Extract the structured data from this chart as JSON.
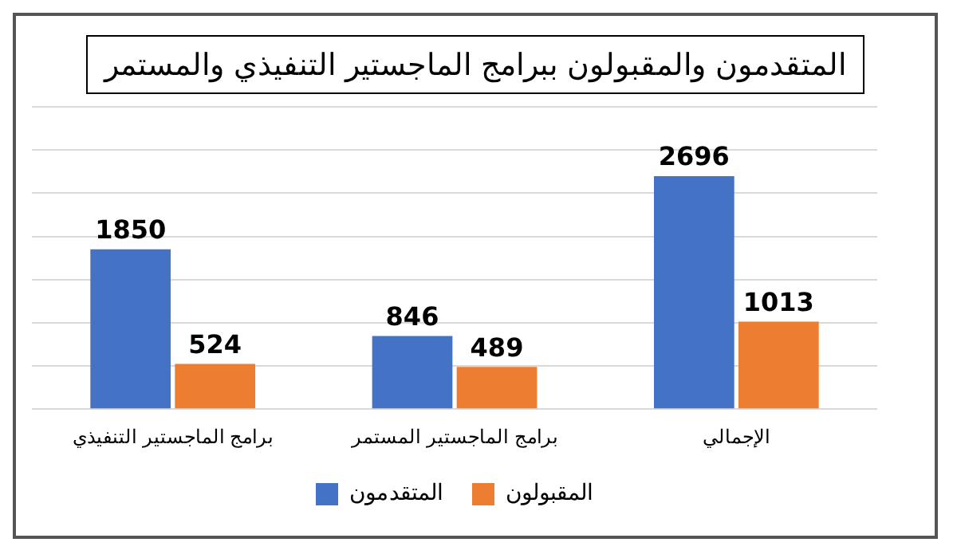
{
  "chart_data": {
    "type": "bar",
    "title": "المتقدمون والمقبولون ببرامج الماجستير التنفيذي والمستمر",
    "categories": [
      "برامج الماجستير التنفيذي",
      "برامج الماجستير المستمر",
      "الإجمالي"
    ],
    "series": [
      {
        "name": "المتقدمون",
        "color": "#4472c4",
        "values": [
          1850,
          846,
          2696
        ]
      },
      {
        "name": "المقبولون",
        "color": "#ed7d31",
        "values": [
          524,
          489,
          1013
        ]
      }
    ],
    "ylim": [
      0,
      3500
    ],
    "yticks": [
      {
        "value": 0,
        "label": null
      },
      {
        "value": 500,
        "label": null
      },
      {
        "value": 1000,
        "label": null
      },
      {
        "value": 1500,
        "label": null
      },
      {
        "value": 2000,
        "label": null
      },
      {
        "value": 2500,
        "label": null
      },
      {
        "value": 3000,
        "label": null
      },
      {
        "value": 3500,
        "label": null
      }
    ],
    "grid": "y",
    "tick_labels": "x",
    "data_labels": true,
    "legend": "bottom"
  }
}
